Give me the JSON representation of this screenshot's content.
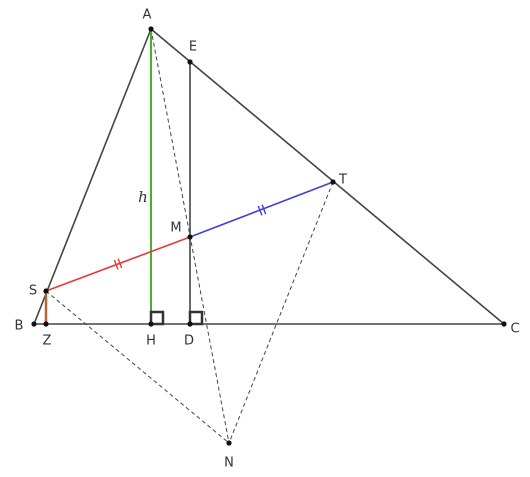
{
  "points": {
    "A": "A",
    "E": "E",
    "T": "T",
    "M": "M",
    "S": "S",
    "B": "B",
    "Z": "Z",
    "H": "H",
    "D": "D",
    "C": "C",
    "N": "N"
  },
  "height_label": "h"
}
